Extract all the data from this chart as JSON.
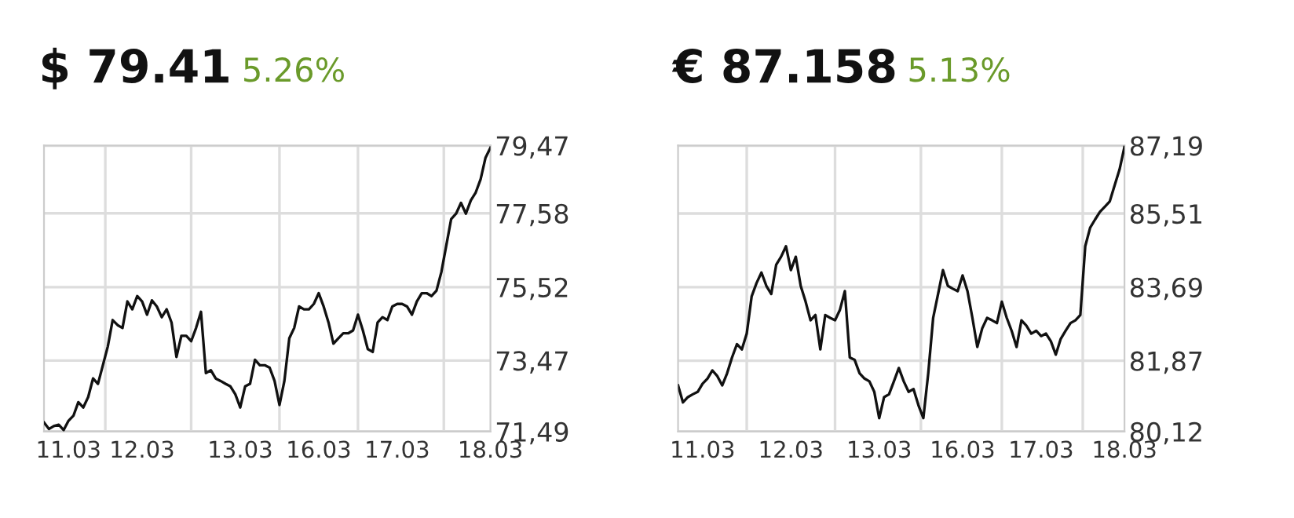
{
  "chart_data": [
    {
      "type": "line",
      "title": "$ 79.41",
      "subtitle": "5.26%",
      "ylim": [
        71.49,
        79.47
      ],
      "categories": [
        null,
        null,
        null,
        null,
        null,
        "11.03",
        null,
        null,
        null,
        null,
        null,
        null,
        null,
        null,
        null,
        null,
        null,
        null,
        null,
        null,
        "12.03",
        null,
        null,
        null,
        null,
        null,
        null,
        null,
        null,
        null,
        null,
        null,
        null,
        null,
        null,
        null,
        null,
        null,
        null,
        null,
        "13.03",
        null,
        null,
        null,
        null,
        null,
        null,
        null,
        null,
        null,
        null,
        null,
        null,
        null,
        null,
        null,
        "16.03",
        null,
        null,
        null,
        null,
        null,
        null,
        null,
        null,
        null,
        null,
        null,
        null,
        null,
        null,
        null,
        "17.03",
        null,
        null,
        null,
        null,
        null,
        null,
        null,
        null,
        null,
        null,
        null,
        null,
        null,
        null,
        null,
        null,
        null,
        null,
        "18.03"
      ],
      "yticks": [
        {
          "value": 71.49,
          "label": "71,49"
        },
        {
          "value": 73.47,
          "label": "73,47"
        },
        {
          "value": 75.52,
          "label": "75,52"
        },
        {
          "value": 77.58,
          "label": "77,58"
        },
        {
          "value": 79.47,
          "label": "79,47"
        }
      ],
      "grid": true,
      "series": [
        {
          "color": "#111111",
          "values": [
            71.74,
            71.56,
            71.64,
            71.68,
            71.53,
            71.79,
            71.93,
            72.31,
            72.16,
            72.45,
            72.97,
            72.82,
            73.34,
            73.86,
            74.6,
            74.46,
            74.38,
            75.12,
            74.9,
            75.27,
            75.12,
            74.75,
            75.15,
            74.98,
            74.68,
            74.9,
            74.53,
            73.57,
            74.16,
            74.16,
            74.01,
            74.38,
            74.83,
            73.12,
            73.2,
            72.97,
            72.9,
            72.82,
            72.75,
            72.53,
            72.16,
            72.75,
            72.82,
            73.49,
            73.34,
            73.34,
            73.27,
            72.9,
            72.23,
            72.9,
            74.09,
            74.38,
            74.98,
            74.9,
            74.9,
            75.05,
            75.35,
            74.98,
            74.53,
            73.94,
            74.09,
            74.23,
            74.23,
            74.31,
            74.75,
            74.31,
            73.79,
            73.71,
            74.53,
            74.68,
            74.6,
            74.98,
            75.05,
            75.05,
            74.98,
            74.75,
            75.12,
            75.35,
            75.35,
            75.27,
            75.42,
            75.94,
            76.68,
            77.42,
            77.57,
            77.87,
            77.57,
            77.94,
            78.16,
            78.53,
            79.13,
            79.41
          ]
        }
      ]
    },
    {
      "type": "line",
      "title": "€ 87.158",
      "subtitle": "5.13%",
      "ylim": [
        80.12,
        87.19
      ],
      "categories": [
        null,
        null,
        null,
        null,
        null,
        "11.03",
        null,
        null,
        null,
        null,
        null,
        null,
        null,
        null,
        null,
        null,
        null,
        null,
        null,
        null,
        null,
        null,
        null,
        "12.03",
        null,
        null,
        null,
        null,
        null,
        null,
        null,
        null,
        null,
        null,
        null,
        null,
        null,
        null,
        null,
        null,
        null,
        "13.03",
        null,
        null,
        null,
        null,
        null,
        null,
        null,
        null,
        null,
        null,
        null,
        null,
        null,
        null,
        null,
        null,
        "16.03",
        null,
        null,
        null,
        null,
        null,
        null,
        null,
        null,
        null,
        null,
        null,
        null,
        null,
        null,
        null,
        "17.03",
        null,
        null,
        null,
        null,
        null,
        null,
        null,
        null,
        null,
        null,
        null,
        null,
        null,
        null,
        null,
        null,
        "18.03"
      ],
      "yticks": [
        {
          "value": 80.12,
          "label": "80,12"
        },
        {
          "value": 81.87,
          "label": "81,87"
        },
        {
          "value": 83.69,
          "label": "83,69"
        },
        {
          "value": 85.51,
          "label": "85,51"
        },
        {
          "value": 87.19,
          "label": "87,19"
        }
      ],
      "grid": true,
      "series": [
        {
          "color": "#111111",
          "values": [
            81.26,
            80.84,
            80.97,
            81.04,
            81.1,
            81.3,
            81.43,
            81.63,
            81.49,
            81.26,
            81.56,
            81.95,
            82.28,
            82.15,
            82.54,
            83.46,
            83.79,
            84.05,
            83.72,
            83.52,
            84.24,
            84.44,
            84.7,
            84.11,
            84.44,
            83.72,
            83.33,
            82.87,
            83.0,
            82.15,
            83.0,
            82.93,
            82.87,
            83.13,
            83.59,
            81.95,
            81.89,
            81.56,
            81.43,
            81.36,
            81.1,
            80.45,
            80.97,
            81.04,
            81.36,
            81.69,
            81.36,
            81.1,
            81.17,
            80.77,
            80.45,
            81.56,
            82.93,
            83.52,
            84.11,
            83.72,
            83.65,
            83.59,
            83.98,
            83.59,
            82.93,
            82.21,
            82.67,
            82.93,
            82.87,
            82.8,
            83.33,
            82.93,
            82.61,
            82.21,
            82.87,
            82.74,
            82.54,
            82.61,
            82.48,
            82.54,
            82.35,
            82.02,
            82.41,
            82.61,
            82.8,
            82.87,
            83.0,
            84.7,
            85.16,
            85.36,
            85.55,
            85.68,
            85.81,
            86.21,
            86.6,
            87.16
          ]
        }
      ]
    }
  ]
}
